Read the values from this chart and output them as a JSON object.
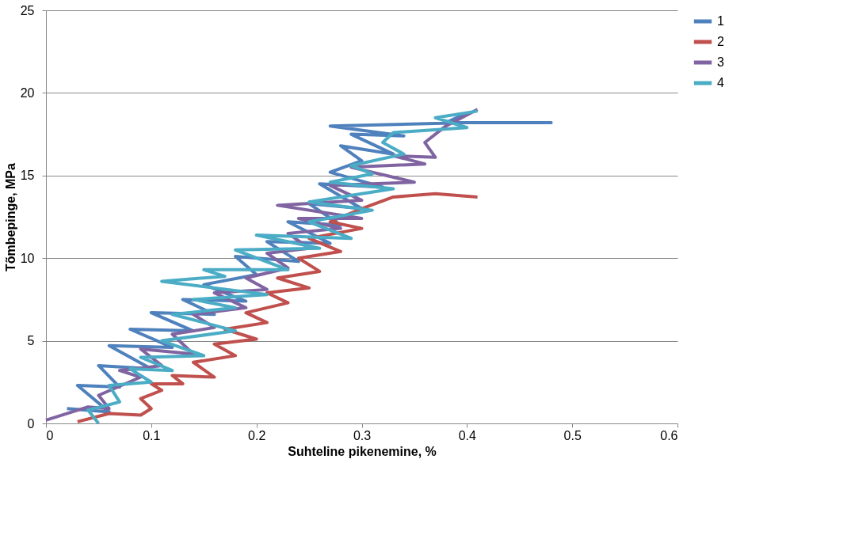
{
  "chart_data": {
    "type": "line",
    "xlabel": "Suhteline pikenemine, %",
    "ylabel": "Tõmbepinge, MPa",
    "xlim": [
      0,
      0.6
    ],
    "xticks": [
      0,
      0.1,
      0.2,
      0.3,
      0.4,
      0.5,
      0.6
    ],
    "ylim": [
      0,
      25
    ],
    "yticks": [
      0,
      5,
      10,
      15,
      20,
      25
    ],
    "grid": "y",
    "legend": "right",
    "marker": "none",
    "line_style": "solid",
    "series": [
      {
        "name": "1",
        "color": "#4f81bd",
        "x": [
          0.02,
          0.06,
          0.03,
          0.07,
          0.05,
          0.1,
          0.06,
          0.12,
          0.08,
          0.14,
          0.1,
          0.16,
          0.13,
          0.19,
          0.15,
          0.2,
          0.18,
          0.24,
          0.21,
          0.27,
          0.23,
          0.28,
          0.25,
          0.3,
          0.26,
          0.32,
          0.27,
          0.3,
          0.28,
          0.33,
          0.29,
          0.34,
          0.27,
          0.4,
          0.48,
          0.38,
          0.4
        ],
        "values": [
          0.9,
          0.7,
          2.3,
          2.2,
          3.5,
          3.3,
          4.7,
          4.6,
          5.7,
          5.6,
          6.7,
          6.6,
          7.5,
          7.4,
          8.4,
          9.0,
          10.1,
          9.8,
          11.0,
          10.9,
          12.2,
          12.0,
          13.3,
          13.0,
          14.5,
          14.3,
          15.2,
          15.9,
          16.8,
          16.3,
          17.5,
          17.4,
          18.0,
          18.2,
          18.2,
          18.2,
          18.8
        ]
      },
      {
        "name": "2",
        "color": "#c0504d",
        "x": [
          0.03,
          0.06,
          0.09,
          0.1,
          0.09,
          0.11,
          0.1,
          0.13,
          0.12,
          0.16,
          0.14,
          0.18,
          0.16,
          0.2,
          0.17,
          0.21,
          0.19,
          0.23,
          0.21,
          0.25,
          0.22,
          0.26,
          0.24,
          0.28,
          0.25,
          0.3,
          0.27,
          0.3,
          0.33,
          0.37,
          0.41
        ],
        "values": [
          0.1,
          0.6,
          0.5,
          0.9,
          1.5,
          2.0,
          2.4,
          2.4,
          2.9,
          2.8,
          3.7,
          4.1,
          4.8,
          5.1,
          5.7,
          6.1,
          6.7,
          7.3,
          7.9,
          8.2,
          8.8,
          9.2,
          10.0,
          10.4,
          11.2,
          11.8,
          12.2,
          13.0,
          13.7,
          13.9,
          13.7
        ]
      },
      {
        "name": "3",
        "color": "#8064a2",
        "x": [
          0.0,
          0.04,
          0.06,
          0.05,
          0.09,
          0.07,
          0.11,
          0.09,
          0.14,
          0.12,
          0.16,
          0.14,
          0.19,
          0.16,
          0.21,
          0.19,
          0.23,
          0.21,
          0.25,
          0.23,
          0.28,
          0.24,
          0.3,
          0.22,
          0.3,
          0.27,
          0.35,
          0.29,
          0.36,
          0.33,
          0.37,
          0.36,
          0.38,
          0.41
        ],
        "values": [
          0.2,
          1.0,
          0.9,
          1.7,
          2.8,
          3.2,
          3.5,
          4.5,
          4.2,
          5.4,
          5.8,
          6.6,
          7.0,
          7.9,
          8.1,
          8.8,
          9.4,
          10.3,
          10.6,
          11.5,
          11.8,
          12.4,
          12.4,
          13.2,
          13.5,
          14.4,
          14.6,
          15.5,
          15.7,
          16.2,
          16.1,
          17.0,
          18.0,
          19.0
        ]
      },
      {
        "name": "4",
        "color": "#4bacc6",
        "x": [
          0.05,
          0.04,
          0.07,
          0.06,
          0.1,
          0.08,
          0.12,
          0.09,
          0.15,
          0.11,
          0.18,
          0.12,
          0.18,
          0.14,
          0.21,
          0.11,
          0.17,
          0.15,
          0.23,
          0.18,
          0.26,
          0.2,
          0.29,
          0.25,
          0.31,
          0.25,
          0.33,
          0.27,
          0.31,
          0.29,
          0.34,
          0.32,
          0.33,
          0.4,
          0.37,
          0.41
        ],
        "values": [
          0.0,
          0.8,
          1.3,
          2.3,
          2.5,
          3.3,
          3.2,
          4.0,
          4.1,
          5.0,
          5.6,
          6.6,
          7.0,
          7.5,
          7.8,
          8.6,
          8.9,
          9.3,
          9.3,
          10.5,
          10.6,
          11.4,
          11.2,
          12.2,
          12.9,
          13.4,
          14.2,
          14.6,
          15.1,
          15.6,
          16.3,
          17.0,
          17.6,
          17.9,
          18.5,
          18.9
        ]
      }
    ]
  }
}
